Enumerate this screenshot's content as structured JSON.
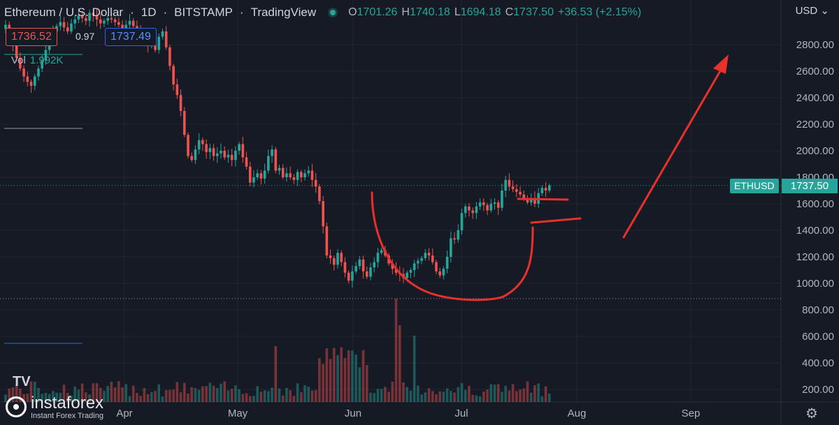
{
  "header": {
    "symbol_name": "Ethereum / U.S. Dollar",
    "interval": "1D",
    "exchange": "BITSTAMP",
    "platform": "TradingView",
    "open_label": "O",
    "open": "1701.26",
    "high_label": "H",
    "high": "1740.18",
    "low_label": "L",
    "low": "1694.18",
    "close_label": "C",
    "close": "1737.50",
    "change": "+36.53 (+2.15%)"
  },
  "trade": {
    "sell": "1736.52",
    "spread": "0.97",
    "buy": "1737.49"
  },
  "volume": {
    "label": "Vol",
    "value": "1.992K"
  },
  "currency": "USD",
  "price_tag": {
    "symbol": "ETHUSD",
    "value": "1737.50"
  },
  "watermark": {
    "brand": "instaforex",
    "sub": "Instant Forex Trading",
    "tv": "TV"
  },
  "icons": {
    "settings": "gear-icon",
    "currency_menu": "chevron-down-icon"
  },
  "colors": {
    "up": "#26a69a",
    "down": "#ef5350",
    "annotation": "#e8312b",
    "background": "#161a25"
  },
  "chart_data": {
    "type": "candlestick",
    "y_ticks": [
      "200.00",
      "400.00",
      "600.00",
      "800.00",
      "1000.00",
      "1200.00",
      "1400.00",
      "1600.00",
      "1800.00",
      "2000.00",
      "2200.00",
      "2400.00",
      "2600.00",
      "2800.00"
    ],
    "x_ticks": [
      "Apr",
      "May",
      "Jun",
      "Jul",
      "Aug",
      "Sep"
    ],
    "ylim": [
      140,
      3000
    ],
    "price_line": 1737.5,
    "dotted_level": 885,
    "closes": [
      2950,
      2880,
      2800,
      2700,
      2620,
      2560,
      2520,
      2490,
      2560,
      2620,
      2680,
      2760,
      2850,
      2900,
      2940,
      2970,
      2930,
      2900,
      2960,
      2990,
      3020,
      3000,
      2980,
      3040,
      3020,
      2990,
      2960,
      2980,
      3000,
      2990,
      2970,
      2950,
      2920,
      2950,
      2980,
      2940,
      2900,
      2860,
      2810,
      2790,
      2800,
      2760,
      2860,
      2900,
      2780,
      2640,
      2500,
      2420,
      2300,
      2120,
      1960,
      1930,
      2010,
      2080,
      2050,
      1990,
      2020,
      1960,
      1980,
      2000,
      1950,
      1970,
      1930,
      2000,
      2050,
      1950,
      1880,
      1760,
      1800,
      1830,
      1790,
      1850,
      1960,
      2010,
      1850,
      1870,
      1800,
      1830,
      1800,
      1780,
      1840,
      1800,
      1830,
      1850,
      1780,
      1730,
      1620,
      1430,
      1210,
      1190,
      1140,
      1230,
      1160,
      1080,
      1020,
      1090,
      1130,
      1180,
      1090,
      1050,
      1120,
      1160,
      1230,
      1250,
      1210,
      1150,
      1110,
      1080,
      1070,
      1040,
      1080,
      1100,
      1150,
      1170,
      1190,
      1230,
      1210,
      1160,
      1090,
      1060,
      1110,
      1200,
      1340,
      1330,
      1400,
      1530,
      1580,
      1550,
      1530,
      1580,
      1610,
      1590,
      1550,
      1600,
      1610,
      1570,
      1700,
      1780,
      1730,
      1710,
      1690,
      1670,
      1640,
      1610,
      1640,
      1600,
      1680,
      1720,
      1700,
      1737.5
    ],
    "volume_bars": 164,
    "annotations": [
      "cup-curve",
      "handle-top-line",
      "handle-bottom-line",
      "target-arrow"
    ]
  }
}
